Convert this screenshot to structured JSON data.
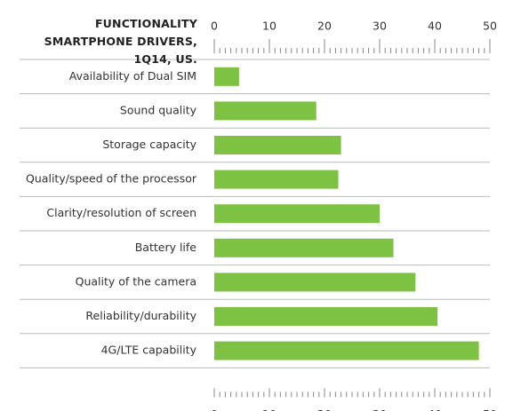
{
  "chart_data": {
    "type": "bar",
    "orientation": "horizontal",
    "title": "FUNCTIONALITY SMARTPHONE DRIVERS, 1Q14, US.",
    "categories": [
      "Availability of Dual SIM",
      "Sound quality",
      "Storage capacity",
      "Quality/speed of the processor",
      "Clarity/resolution of screen",
      "Battery life",
      "Quality of the camera",
      "Reliability/durability",
      "4G/LTE capability"
    ],
    "values": [
      4.5,
      18.5,
      23,
      22.5,
      30,
      32.5,
      36.5,
      40.5,
      48
    ],
    "color": "#7dc242",
    "xlim": [
      0,
      50
    ],
    "xticks": [
      0,
      10,
      20,
      30,
      40,
      50
    ]
  }
}
